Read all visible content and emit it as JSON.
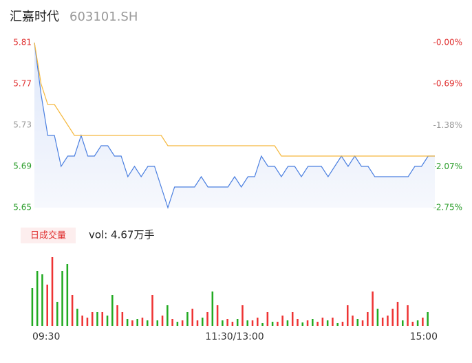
{
  "chart_data": {
    "type": "intraday",
    "title": "汇嘉时代",
    "subtitle": "603101.SH",
    "x": [
      0,
      4,
      8,
      12,
      16,
      20,
      24,
      28,
      32,
      36,
      40,
      44,
      48,
      52,
      56,
      60,
      64,
      68,
      72,
      76,
      80,
      84,
      88,
      92,
      96,
      100,
      104,
      108,
      112,
      116,
      120,
      124,
      128,
      132,
      136,
      140,
      144,
      148,
      152,
      156,
      160,
      164,
      168,
      172,
      176,
      180,
      184,
      188,
      192,
      196,
      200,
      204,
      208,
      212,
      216,
      220,
      224,
      228,
      232,
      236,
      240
    ],
    "series": [
      {
        "color": "#4a7fe0",
        "values": [
          5.81,
          5.76,
          5.72,
          5.72,
          5.69,
          5.7,
          5.7,
          5.72,
          5.7,
          5.7,
          5.71,
          5.71,
          5.7,
          5.7,
          5.68,
          5.69,
          5.68,
          5.69,
          5.69,
          5.67,
          5.65,
          5.67,
          5.67,
          5.67,
          5.67,
          5.68,
          5.67,
          5.67,
          5.67,
          5.67,
          5.68,
          5.67,
          5.68,
          5.68,
          5.7,
          5.69,
          5.69,
          5.68,
          5.69,
          5.69,
          5.68,
          5.69,
          5.69,
          5.69,
          5.68,
          5.69,
          5.7,
          5.69,
          5.7,
          5.69,
          5.69,
          5.68,
          5.68,
          5.68,
          5.68,
          5.68,
          5.68,
          5.69,
          5.69,
          5.7,
          5.7
        ]
      },
      {
        "color": "#f5b83d",
        "values": [
          5.81,
          5.77,
          5.75,
          5.75,
          5.74,
          5.73,
          5.72,
          5.72,
          5.72,
          5.72,
          5.72,
          5.72,
          5.72,
          5.72,
          5.72,
          5.72,
          5.72,
          5.72,
          5.72,
          5.72,
          5.71,
          5.71,
          5.71,
          5.71,
          5.71,
          5.71,
          5.71,
          5.71,
          5.71,
          5.71,
          5.71,
          5.71,
          5.71,
          5.71,
          5.71,
          5.71,
          5.71,
          5.7,
          5.7,
          5.7,
          5.7,
          5.7,
          5.7,
          5.7,
          5.7,
          5.7,
          5.7,
          5.7,
          5.7,
          5.7,
          5.7,
          5.7,
          5.7,
          5.7,
          5.7,
          5.7,
          5.7,
          5.7,
          5.7,
          5.7,
          5.7
        ]
      }
    ],
    "xlim": [
      0,
      240
    ],
    "xticks": [
      {
        "value": 0,
        "label": "09:30"
      },
      {
        "value": 120,
        "label": "11:30/13:00"
      },
      {
        "value": 240,
        "label": "15:00"
      }
    ],
    "ylim": [
      5.65,
      5.81
    ],
    "yticks": [
      {
        "value": 5.65,
        "label": "5.65",
        "color": "#2a9d2a"
      },
      {
        "value": 5.69,
        "label": "5.69",
        "color": "#2a9d2a"
      },
      {
        "value": 5.73,
        "label": "5.73",
        "color": "#999999"
      },
      {
        "value": 5.77,
        "label": "5.77",
        "color": "#e03030"
      },
      {
        "value": 5.81,
        "label": "5.81",
        "color": "#e03030"
      }
    ],
    "y2lim": [
      -2.75,
      0
    ],
    "y2ticks": [
      {
        "value": -2.75,
        "label": "-2.75%",
        "color": "#2a9d2a"
      },
      {
        "value": -2.07,
        "label": "-2.07%",
        "color": "#2a9d2a"
      },
      {
        "value": -1.38,
        "label": "-1.38%",
        "color": "#999999"
      },
      {
        "value": -0.69,
        "label": "-0.69%",
        "color": "#e03030"
      },
      {
        "value": 0,
        "label": "-0.00%",
        "color": "#e03030"
      }
    ],
    "volume": {
      "badge": "日成交量",
      "label": "vol: 4.67万手",
      "ylim": [
        0,
        100
      ],
      "values": [
        55,
        80,
        75,
        60,
        100,
        35,
        80,
        90,
        45,
        25,
        15,
        12,
        20,
        20,
        20,
        15,
        45,
        30,
        20,
        10,
        8,
        10,
        12,
        8,
        45,
        8,
        15,
        30,
        10,
        6,
        8,
        20,
        25,
        8,
        12,
        20,
        50,
        30,
        8,
        10,
        6,
        10,
        30,
        8,
        8,
        12,
        4,
        20,
        6,
        6,
        15,
        8,
        20,
        10,
        5,
        8,
        10,
        6,
        12,
        8,
        12,
        4,
        6,
        30,
        15,
        10,
        8,
        20,
        50,
        25,
        12,
        15,
        25,
        35,
        8,
        30,
        6,
        8,
        12,
        20
      ],
      "colors": [
        "#2a2",
        "#2a2",
        "#2a2",
        "#e33",
        "#e33",
        "#2a2",
        "#2a2",
        "#2a2",
        "#e33",
        "#2a2",
        "#e33",
        "#e33",
        "#e33",
        "#2a2",
        "#e33",
        "#2a2",
        "#2a2",
        "#e33",
        "#e33",
        "#2a2",
        "#e33",
        "#2a2",
        "#e33",
        "#2a2",
        "#e33",
        "#2a2",
        "#e33",
        "#2a2",
        "#e33",
        "#2a2",
        "#e33",
        "#2a2",
        "#e33",
        "#e33",
        "#2a2",
        "#e33",
        "#2a2",
        "#e33",
        "#2a2",
        "#e33",
        "#e33",
        "#2a2",
        "#e33",
        "#2a2",
        "#e33",
        "#e33",
        "#2a2",
        "#e33",
        "#2a2",
        "#e33",
        "#e33",
        "#2a2",
        "#e33",
        "#e33",
        "#2a2",
        "#e33",
        "#2a2",
        "#e33",
        "#e33",
        "#2a2",
        "#e33",
        "#2a2",
        "#e33",
        "#e33",
        "#e33",
        "#2a2",
        "#e33",
        "#e33",
        "#e33",
        "#2a2",
        "#e33",
        "#e33",
        "#e33",
        "#e33",
        "#2a2",
        "#e33",
        "#e33",
        "#2a2",
        "#e33",
        "#2a2"
      ]
    }
  }
}
